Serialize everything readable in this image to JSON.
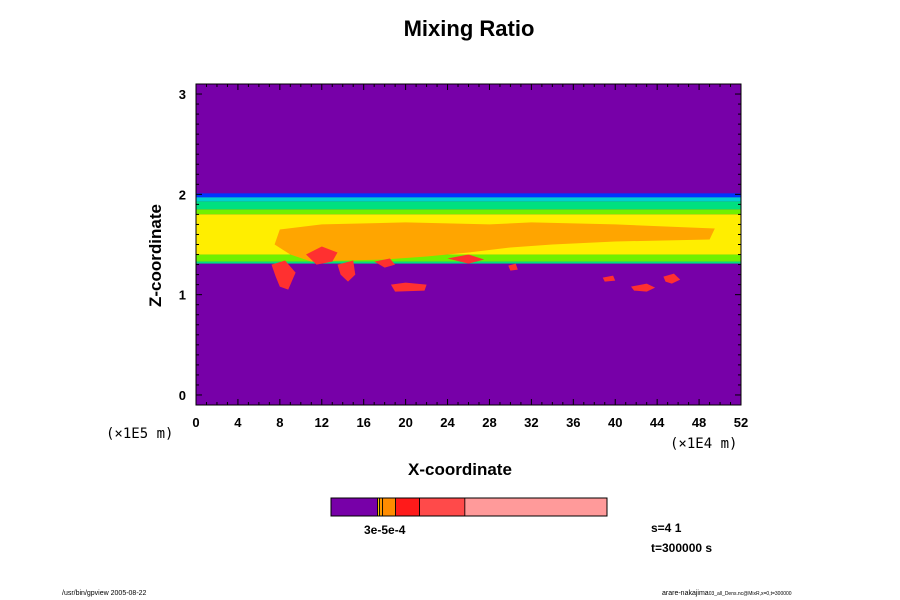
{
  "chart_data": {
    "type": "heatmap",
    "title": "Mixing Ratio",
    "xlabel": "X-coordinate",
    "ylabel": "Z-coordinate",
    "x_exponent": "(×1E4 m)",
    "y_exponent": "(×1E5 m)",
    "xlim": [
      0,
      52
    ],
    "ylim": [
      -0.1,
      3.1
    ],
    "xticks": [
      0,
      4,
      8,
      12,
      16,
      20,
      24,
      28,
      32,
      36,
      40,
      44,
      48,
      52
    ],
    "yticks": [
      0,
      1,
      2,
      3
    ],
    "background_color": "#7700a8",
    "bands": [
      {
        "z": [
          1.97,
          2.01
        ],
        "color": "#0033ff"
      },
      {
        "z": [
          1.93,
          1.97
        ],
        "color": "#00d0d0"
      },
      {
        "z": [
          1.85,
          1.93
        ],
        "color": "#00e080"
      },
      {
        "z": [
          1.8,
          1.85
        ],
        "color": "#70f000"
      },
      {
        "z": [
          1.4,
          1.8
        ],
        "color": "#ffee00"
      },
      {
        "z": [
          1.33,
          1.4
        ],
        "color": "#70f000"
      },
      {
        "z": [
          1.31,
          1.33
        ],
        "color": "#00e080"
      }
    ],
    "regions": [
      {
        "level": "orange",
        "color": "#ffa500",
        "points": [
          [
            8,
            1.65
          ],
          [
            12,
            1.7
          ],
          [
            20,
            1.72
          ],
          [
            28,
            1.7
          ],
          [
            32,
            1.72
          ],
          [
            40,
            1.7
          ],
          [
            49.5,
            1.66
          ],
          [
            49,
            1.55
          ],
          [
            40,
            1.53
          ],
          [
            34,
            1.5
          ],
          [
            30,
            1.47
          ],
          [
            26,
            1.42
          ],
          [
            22,
            1.38
          ],
          [
            18,
            1.35
          ],
          [
            14,
            1.34
          ],
          [
            11,
            1.33
          ],
          [
            9,
            1.4
          ],
          [
            7.5,
            1.5
          ]
        ]
      },
      {
        "level": "red",
        "color": "#ff3030",
        "points": [
          [
            7.2,
            1.3
          ],
          [
            8.5,
            1.34
          ],
          [
            9.5,
            1.22
          ],
          [
            8.8,
            1.05
          ],
          [
            8.0,
            1.08
          ],
          [
            7.6,
            1.18
          ]
        ]
      },
      {
        "level": "red",
        "color": "#ff3030",
        "points": [
          [
            10.5,
            1.4
          ],
          [
            12,
            1.48
          ],
          [
            13.5,
            1.42
          ],
          [
            13,
            1.33
          ],
          [
            11.5,
            1.3
          ]
        ]
      },
      {
        "level": "red",
        "color": "#ff3030",
        "points": [
          [
            13.5,
            1.3
          ],
          [
            15,
            1.34
          ],
          [
            15.2,
            1.2
          ],
          [
            14.5,
            1.13
          ],
          [
            13.8,
            1.2
          ]
        ]
      },
      {
        "level": "red",
        "color": "#ff3030",
        "points": [
          [
            17,
            1.33
          ],
          [
            18.5,
            1.36
          ],
          [
            19,
            1.3
          ],
          [
            18,
            1.27
          ]
        ]
      },
      {
        "level": "red",
        "color": "#ff3030",
        "points": [
          [
            18.6,
            1.1
          ],
          [
            20,
            1.12
          ],
          [
            22,
            1.1
          ],
          [
            21.8,
            1.04
          ],
          [
            19,
            1.03
          ]
        ]
      },
      {
        "level": "red",
        "color": "#ff3030",
        "points": [
          [
            24,
            1.36
          ],
          [
            26,
            1.4
          ],
          [
            27.5,
            1.35
          ],
          [
            26,
            1.31
          ]
        ]
      },
      {
        "level": "red",
        "color": "#ff3030",
        "points": [
          [
            29.8,
            1.29
          ],
          [
            30.5,
            1.31
          ],
          [
            30.7,
            1.25
          ],
          [
            30,
            1.24
          ]
        ]
      },
      {
        "level": "red",
        "color": "#ff3030",
        "points": [
          [
            38.8,
            1.17
          ],
          [
            39.8,
            1.19
          ],
          [
            40,
            1.14
          ],
          [
            39,
            1.13
          ]
        ]
      },
      {
        "level": "red",
        "color": "#ff3030",
        "points": [
          [
            41.5,
            1.08
          ],
          [
            43,
            1.11
          ],
          [
            43.8,
            1.07
          ],
          [
            43,
            1.03
          ],
          [
            41.8,
            1.04
          ]
        ]
      },
      {
        "level": "red",
        "color": "#ff3030",
        "points": [
          [
            44.6,
            1.18
          ],
          [
            45.6,
            1.21
          ],
          [
            46.2,
            1.15
          ],
          [
            45.4,
            1.11
          ],
          [
            44.8,
            1.13
          ]
        ]
      }
    ],
    "colorbar": {
      "segments": [
        {
          "color": "#7700a8",
          "width": 0.169
        },
        {
          "color": "#ffcc00",
          "width": 0.007
        },
        {
          "color": "#ff9900",
          "width": 0.011
        },
        {
          "color": "#ff8c00",
          "width": 0.047
        },
        {
          "color": "#ff1a1a",
          "width": 0.087
        },
        {
          "color": "#ff4a4a",
          "width": 0.164
        },
        {
          "color": "#ff9a9a",
          "width": 0.515
        }
      ],
      "tick_label": "3e-5e-4"
    },
    "info": [
      "s=4 1",
      "t=300000 s"
    ],
    "footer_left": "/usr/bin/gpview 2005-08-22",
    "footer_right": "arare-nakajima",
    "footer_right_small": "03_all_Dens.nc@MixR,x=0,t=300000"
  }
}
